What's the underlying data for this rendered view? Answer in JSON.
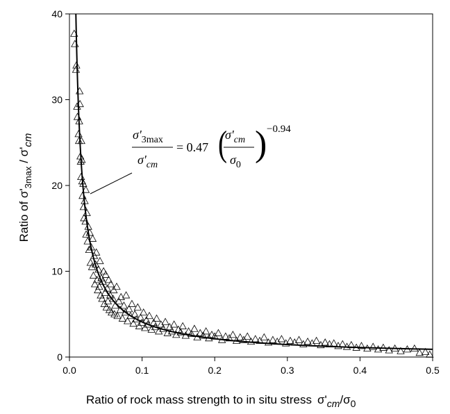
{
  "chart_data": {
    "type": "scatter",
    "xlim": [
      0,
      0.5
    ],
    "ylim": [
      0,
      40
    ],
    "x_ticks": [
      "0.0",
      "0.1",
      "0.2",
      "0.3",
      "0.4",
      "0.5"
    ],
    "y_ticks": [
      "0",
      "10",
      "20",
      "30",
      "40"
    ],
    "xlabel": {
      "prefix": "Ratio of rock mass strength to in situ stress",
      "sigma": "σ'",
      "sub_cm": "cm",
      "slash": "/σ",
      "sub_0": "0"
    },
    "ylabel": {
      "prefix": "Ratio of σ'",
      "sub_3max": "3max",
      "mid": " / σ'",
      "sub_cm": "cm"
    },
    "grid": false,
    "legend": "none",
    "marker": "open-triangle",
    "fit": {
      "coefficient": 0.47,
      "exponent": -0.94,
      "eq_num_sigma": "σ'",
      "eq_num_sub": "3max",
      "eq_den_sigma": "σ'",
      "eq_den_sub": "cm",
      "eq_equals": "= 0.47",
      "eq_paren_num_sigma": "σ'",
      "eq_paren_num_sub": "cm",
      "eq_paren_den_sigma": "σ",
      "eq_paren_den_sub": "0",
      "eq_exponent": "−0.94"
    },
    "points": [
      [
        0.0065,
        37.7
      ],
      [
        0.0075,
        36.5
      ],
      [
        0.009,
        33.5
      ],
      [
        0.0095,
        34.0
      ],
      [
        0.0105,
        29.2
      ],
      [
        0.011,
        28.0
      ],
      [
        0.0125,
        26.0
      ],
      [
        0.013,
        25.2
      ],
      [
        0.0135,
        27.5
      ],
      [
        0.014,
        31.0
      ],
      [
        0.0145,
        29.5
      ],
      [
        0.015,
        23.4
      ],
      [
        0.0155,
        22.8
      ],
      [
        0.016,
        21.0
      ],
      [
        0.0165,
        25.2
      ],
      [
        0.017,
        23.0
      ],
      [
        0.0175,
        20.5
      ],
      [
        0.018,
        18.8
      ],
      [
        0.019,
        20.2
      ],
      [
        0.0195,
        17.5
      ],
      [
        0.02,
        16.2
      ],
      [
        0.021,
        18.2
      ],
      [
        0.022,
        15.8
      ],
      [
        0.0225,
        19.5
      ],
      [
        0.023,
        14.3
      ],
      [
        0.024,
        16.8
      ],
      [
        0.025,
        13.5
      ],
      [
        0.026,
        15.2
      ],
      [
        0.027,
        12.5
      ],
      [
        0.028,
        14.5
      ],
      [
        0.029,
        11.0
      ],
      [
        0.03,
        12.8
      ],
      [
        0.031,
        10.5
      ],
      [
        0.032,
        13.8
      ],
      [
        0.033,
        9.5
      ],
      [
        0.034,
        11.8
      ],
      [
        0.035,
        8.5
      ],
      [
        0.036,
        10.8
      ],
      [
        0.037,
        12.2
      ],
      [
        0.038,
        9.0
      ],
      [
        0.039,
        7.8
      ],
      [
        0.04,
        10.2
      ],
      [
        0.041,
        8.2
      ],
      [
        0.042,
        11.2
      ],
      [
        0.043,
        7.2
      ],
      [
        0.044,
        9.2
      ],
      [
        0.045,
        6.8
      ],
      [
        0.046,
        8.8
      ],
      [
        0.047,
        10.0
      ],
      [
        0.048,
        6.2
      ],
      [
        0.049,
        7.5
      ],
      [
        0.05,
        9.6
      ],
      [
        0.051,
        5.8
      ],
      [
        0.052,
        8.0
      ],
      [
        0.053,
        6.5
      ],
      [
        0.054,
        9.0
      ],
      [
        0.055,
        5.5
      ],
      [
        0.056,
        7.2
      ],
      [
        0.057,
        8.5
      ],
      [
        0.058,
        5.2
      ],
      [
        0.06,
        6.8
      ],
      [
        0.061,
        7.8
      ],
      [
        0.062,
        5.0
      ],
      [
        0.063,
        6.0
      ],
      [
        0.065,
        8.2
      ],
      [
        0.066,
        4.8
      ],
      [
        0.068,
        6.5
      ],
      [
        0.07,
        5.5
      ],
      [
        0.071,
        7.0
      ],
      [
        0.073,
        4.5
      ],
      [
        0.075,
        6.0
      ],
      [
        0.077,
        5.2
      ],
      [
        0.078,
        7.2
      ],
      [
        0.08,
        4.2
      ],
      [
        0.082,
        5.6
      ],
      [
        0.084,
        4.8
      ],
      [
        0.086,
        6.2
      ],
      [
        0.088,
        3.9
      ],
      [
        0.09,
        5.0
      ],
      [
        0.092,
        4.4
      ],
      [
        0.094,
        5.8
      ],
      [
        0.096,
        3.6
      ],
      [
        0.098,
        4.6
      ],
      [
        0.1,
        4.0
      ],
      [
        0.102,
        5.2
      ],
      [
        0.104,
        3.4
      ],
      [
        0.106,
        4.3
      ],
      [
        0.108,
        3.8
      ],
      [
        0.11,
        4.8
      ],
      [
        0.113,
        3.2
      ],
      [
        0.116,
        4.0
      ],
      [
        0.118,
        3.5
      ],
      [
        0.12,
        4.5
      ],
      [
        0.123,
        3.0
      ],
      [
        0.126,
        3.8
      ],
      [
        0.129,
        3.3
      ],
      [
        0.132,
        4.1
      ],
      [
        0.135,
        2.8
      ],
      [
        0.138,
        3.5
      ],
      [
        0.141,
        3.0
      ],
      [
        0.144,
        3.8
      ],
      [
        0.147,
        2.6
      ],
      [
        0.15,
        3.2
      ],
      [
        0.153,
        2.9
      ],
      [
        0.156,
        3.6
      ],
      [
        0.16,
        2.5
      ],
      [
        0.164,
        3.0
      ],
      [
        0.168,
        2.7
      ],
      [
        0.172,
        3.3
      ],
      [
        0.176,
        2.3
      ],
      [
        0.18,
        2.8
      ],
      [
        0.184,
        2.5
      ],
      [
        0.188,
        3.0
      ],
      [
        0.192,
        2.2
      ],
      [
        0.196,
        2.6
      ],
      [
        0.2,
        2.4
      ],
      [
        0.205,
        2.8
      ],
      [
        0.21,
        2.0
      ],
      [
        0.215,
        2.4
      ],
      [
        0.22,
        2.2
      ],
      [
        0.225,
        2.6
      ],
      [
        0.23,
        1.9
      ],
      [
        0.235,
        2.3
      ],
      [
        0.24,
        2.0
      ],
      [
        0.245,
        2.4
      ],
      [
        0.25,
        1.8
      ],
      [
        0.256,
        2.1
      ],
      [
        0.262,
        1.9
      ],
      [
        0.268,
        2.3
      ],
      [
        0.274,
        1.7
      ],
      [
        0.28,
        2.0
      ],
      [
        0.286,
        1.8
      ],
      [
        0.292,
        2.1
      ],
      [
        0.298,
        1.6
      ],
      [
        0.304,
        1.9
      ],
      [
        0.31,
        1.7
      ],
      [
        0.316,
        2.0
      ],
      [
        0.322,
        1.5
      ],
      [
        0.328,
        1.8
      ],
      [
        0.334,
        1.6
      ],
      [
        0.34,
        1.9
      ],
      [
        0.346,
        1.4
      ],
      [
        0.352,
        1.7
      ],
      [
        0.358,
        1.5
      ],
      [
        0.364,
        1.6
      ],
      [
        0.37,
        1.3
      ],
      [
        0.376,
        1.5
      ],
      [
        0.382,
        1.2
      ],
      [
        0.388,
        1.4
      ],
      [
        0.395,
        1.1
      ],
      [
        0.402,
        1.3
      ],
      [
        0.41,
        1.0
      ],
      [
        0.418,
        1.2
      ],
      [
        0.425,
        0.9
      ],
      [
        0.432,
        1.1
      ],
      [
        0.44,
        0.8
      ],
      [
        0.448,
        1.0
      ],
      [
        0.456,
        0.7
      ],
      [
        0.465,
        0.9
      ],
      [
        0.475,
        1.0
      ],
      [
        0.482,
        0.5
      ],
      [
        0.49,
        0.6
      ],
      [
        0.496,
        0.3
      ]
    ]
  }
}
